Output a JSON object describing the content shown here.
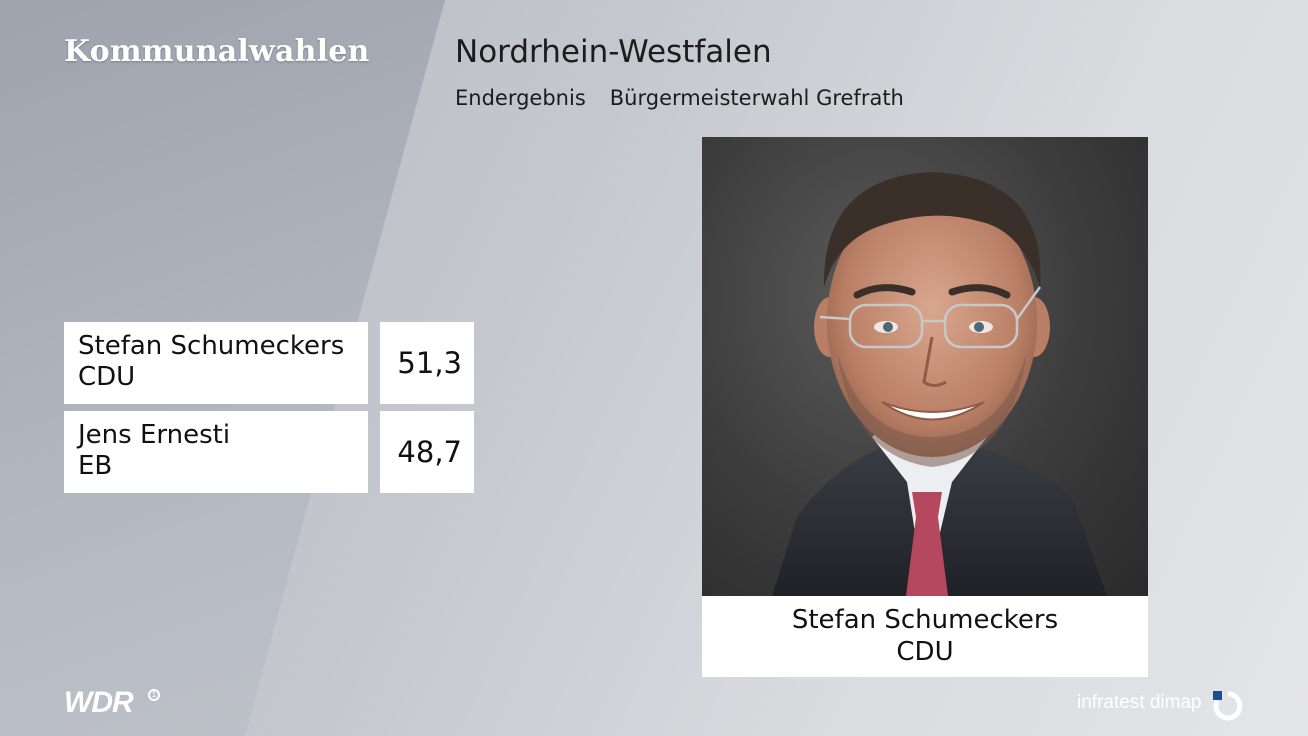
{
  "header": {
    "brand": "Kommunalwahlen",
    "region": "Nordrhein-Westfalen",
    "result_type": "Endergebnis",
    "election": "Bürgermeisterwahl Grefrath"
  },
  "results": [
    {
      "name": "Stefan Schumeckers",
      "party": "CDU",
      "value": "51,3"
    },
    {
      "name": "Jens Ernesti",
      "party": "EB",
      "value": "48,7"
    }
  ],
  "winner": {
    "photo_icon": "candidate-portrait",
    "name": "Stefan Schumeckers",
    "party": "CDU"
  },
  "footer": {
    "broadcaster": "WDR",
    "broadcaster_mark": "1",
    "pollster": "infratest dimap"
  },
  "colors": {
    "panel": "#ffffff",
    "text": "#111111",
    "tie": "#b5485e",
    "logo_blue": "#1f4f8c"
  }
}
